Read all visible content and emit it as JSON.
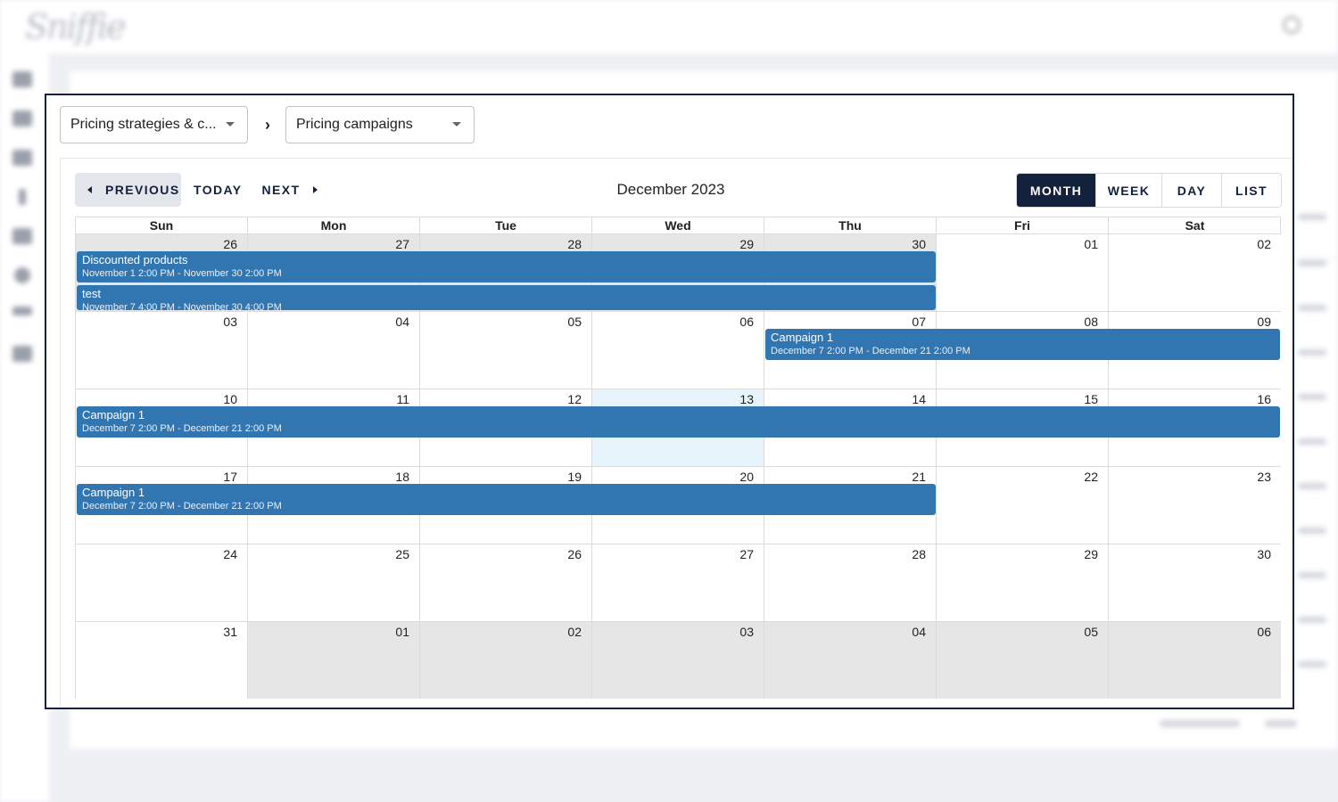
{
  "background": {
    "logo_text": "Sniffie"
  },
  "breadcrumb": {
    "select1_value": "Pricing strategies & c...",
    "select2_value": "Pricing campaigns"
  },
  "toolbar": {
    "previous_label": "PREVIOUS",
    "today_label": "TODAY",
    "next_label": "NEXT",
    "title": "December 2023",
    "views": {
      "month": "MONTH",
      "week": "WEEK",
      "day": "DAY",
      "list": "LIST"
    },
    "active_view": "month"
  },
  "calendar": {
    "weekdays": [
      "Sun",
      "Mon",
      "Tue",
      "Wed",
      "Thu",
      "Fri",
      "Sat"
    ],
    "weeks": [
      [
        "26",
        "27",
        "28",
        "29",
        "30",
        "01",
        "02"
      ],
      [
        "03",
        "04",
        "05",
        "06",
        "07",
        "08",
        "09"
      ],
      [
        "10",
        "11",
        "12",
        "13",
        "14",
        "15",
        "16"
      ],
      [
        "17",
        "18",
        "19",
        "20",
        "21",
        "22",
        "23"
      ],
      [
        "24",
        "25",
        "26",
        "27",
        "28",
        "29",
        "30"
      ],
      [
        "31",
        "01",
        "02",
        "03",
        "04",
        "05",
        "06"
      ]
    ],
    "other_month_cells": [
      [
        0,
        0
      ],
      [
        0,
        1
      ],
      [
        0,
        2
      ],
      [
        0,
        3
      ],
      [
        0,
        4
      ],
      [
        5,
        1
      ],
      [
        5,
        2
      ],
      [
        5,
        3
      ],
      [
        5,
        4
      ],
      [
        5,
        5
      ],
      [
        5,
        6
      ]
    ],
    "today_cell": [
      2,
      3
    ],
    "events": {
      "discounted": {
        "title": "Discounted products",
        "time": "November 1 2:00 PM - November 30 2:00 PM"
      },
      "test": {
        "title": "test",
        "time": "November 7 4:00 PM - November 30 4:00 PM"
      },
      "campaign_w2": {
        "title": "Campaign 1",
        "time": "December 7 2:00 PM - December 21 2:00 PM"
      },
      "campaign_w3": {
        "title": "Campaign 1",
        "time": "December 7 2:00 PM - December 21 2:00 PM"
      },
      "campaign_w4": {
        "title": "Campaign 1",
        "time": "December 7 2:00 PM - December 21 2:00 PM"
      }
    }
  },
  "colors": {
    "primary_dark": "#14213d",
    "event_blue": "#3276b1",
    "today_highlight": "#e8f4fc",
    "other_month": "#e6e6e6"
  }
}
